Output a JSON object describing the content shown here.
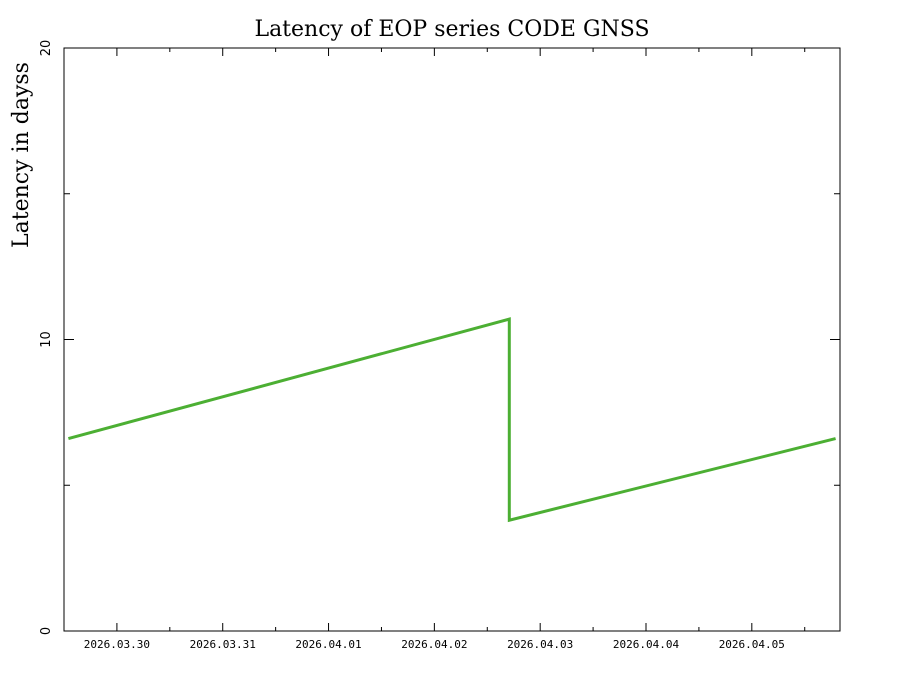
{
  "chart_data": {
    "type": "line",
    "title": "Latency of EOP  series CODE GNSS",
    "xlabel": "",
    "ylabel": "Latency in dayss",
    "ylim": [
      0,
      20
    ],
    "yticks": [
      0,
      10,
      20
    ],
    "xlim": [
      "2026-03-29T12:00",
      "2026-04-05T20:00"
    ],
    "xticks": [
      "2026-03-30T00:00",
      "2026-03-31T00:00",
      "2026-04-01T00:00",
      "2026-04-02T00:00",
      "2026-04-03T00:00",
      "2026-04-04T00:00",
      "2026-04-05T00:00"
    ],
    "xtick_labels": [
      "2026.03.30",
      "2026.03.31",
      "2026.04.01",
      "2026.04.02",
      "2026.04.03",
      "2026.04.04",
      "2026.04.05"
    ],
    "grid": false,
    "series": [
      {
        "color": "#4caf33",
        "points": [
          {
            "x": "2026-03-29T13:00",
            "y": 6.6
          },
          {
            "x": "2026-04-02T17:00",
            "y": 10.7
          },
          {
            "x": "2026-04-02T17:00",
            "y": 7.3
          },
          {
            "x": "2026-04-02T17:00",
            "y": 3.8
          },
          {
            "x": "2026-04-05T19:00",
            "y": 6.6
          }
        ]
      }
    ]
  }
}
